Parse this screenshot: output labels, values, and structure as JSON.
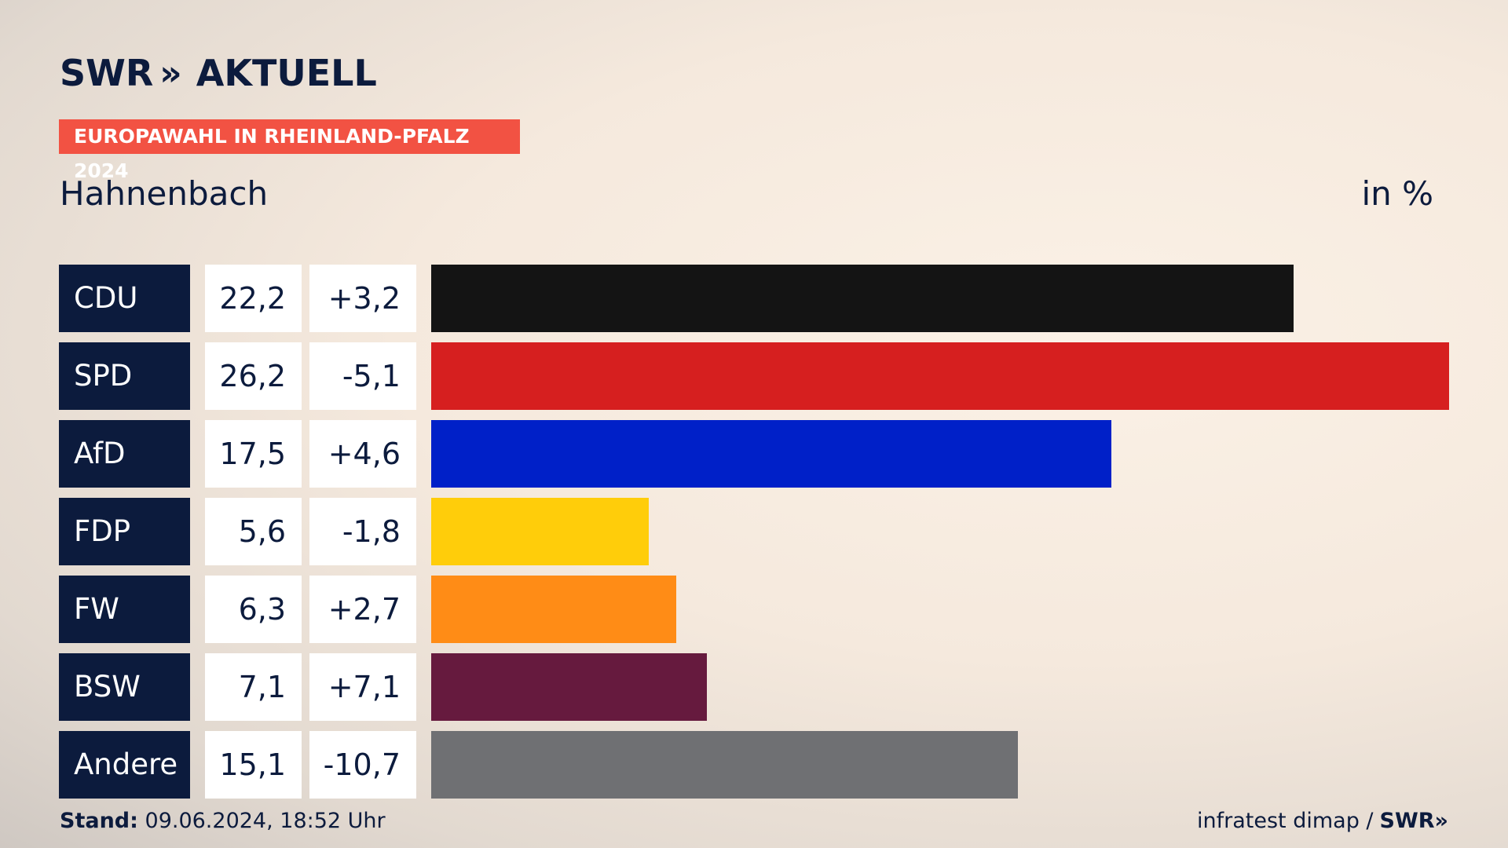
{
  "header": {
    "logo_text": "SWR",
    "logo_chevrons": "»",
    "logo_suffix": "AKTUELL",
    "badge": "EUROPAWAHL IN RHEINLAND-PFALZ 2024",
    "subtitle": "Hahnenbach",
    "unit": "in %"
  },
  "footer": {
    "stand_label": "Stand:",
    "stand_value": "09.06.2024, 18:52 Uhr",
    "source": "infratest dimap /",
    "source_logo": "SWR»"
  },
  "chart_data": {
    "type": "bar",
    "orientation": "horizontal",
    "categories": [
      "CDU",
      "SPD",
      "AfD",
      "FDP",
      "FW",
      "BSW",
      "Andere"
    ],
    "values": [
      22.2,
      26.2,
      17.5,
      5.6,
      6.3,
      7.1,
      15.1
    ],
    "value_labels": [
      "22,2",
      "26,2",
      "17,5",
      "5,6",
      "6,3",
      "7,1",
      "15,1"
    ],
    "diff_labels": [
      "+3,2",
      "-5,1",
      "+4,6",
      "-1,8",
      "+2,7",
      "+7,1",
      "-10,7"
    ],
    "colors": [
      "#141414",
      "#d61f1f",
      "#0020c8",
      "#ffcd0a",
      "#ff8c16",
      "#661a3e",
      "#6f7073"
    ],
    "xlim": [
      0,
      26.2
    ]
  }
}
